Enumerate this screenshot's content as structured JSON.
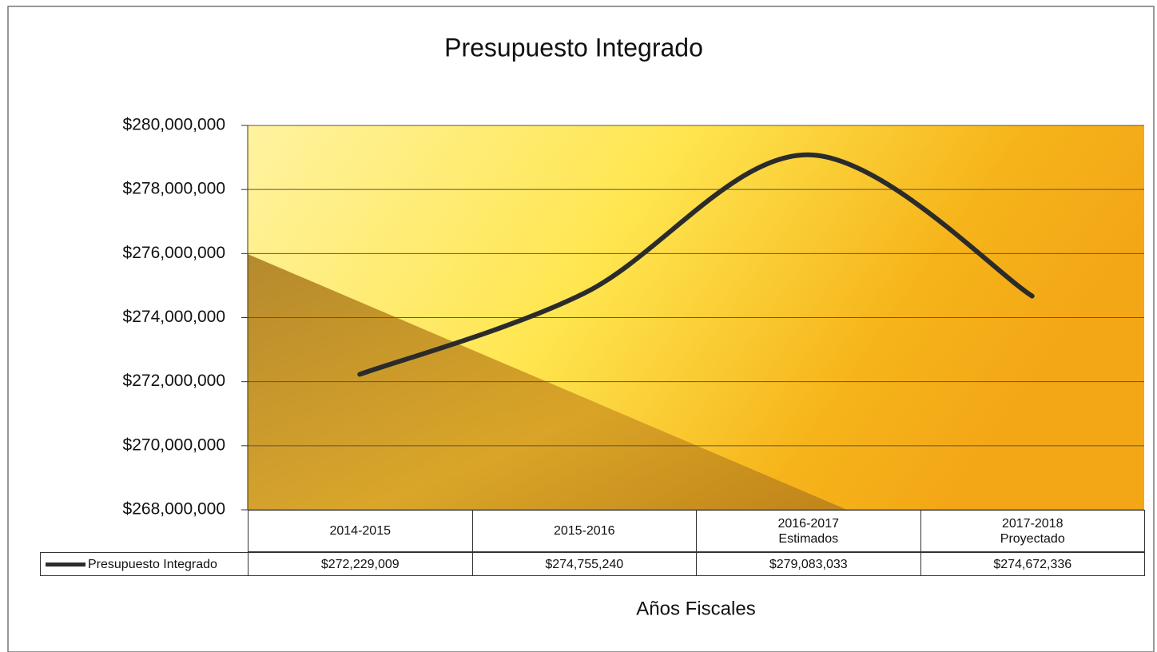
{
  "chart_data": {
    "type": "line",
    "title": "Presupuesto Integrado",
    "x_label": "Años Fiscales",
    "categories": [
      "2014-2015",
      "2015-2016",
      "2016-2017\nEstimados",
      "2017-2018\nProyectado"
    ],
    "series": [
      {
        "name": "Presupuesto Integrado",
        "color": "#2b2b2b",
        "values": [
          272229009,
          274755240,
          279083033,
          274672336
        ],
        "value_labels": [
          "$272,229,009",
          "$274,755,240",
          "$279,083,033",
          "$274,672,336"
        ]
      }
    ],
    "ylim": [
      268000000,
      280000000
    ],
    "yticks": [
      {
        "value": 268000000,
        "label": "$268,000,000"
      },
      {
        "value": 270000000,
        "label": "$270,000,000"
      },
      {
        "value": 272000000,
        "label": "$272,000,000"
      },
      {
        "value": 274000000,
        "label": "$274,000,000"
      },
      {
        "value": 276000000,
        "label": "$276,000,000"
      },
      {
        "value": 278000000,
        "label": "$278,000,000"
      },
      {
        "value": 280000000,
        "label": "$280,000,000"
      }
    ],
    "grid": true,
    "smooth": true
  }
}
